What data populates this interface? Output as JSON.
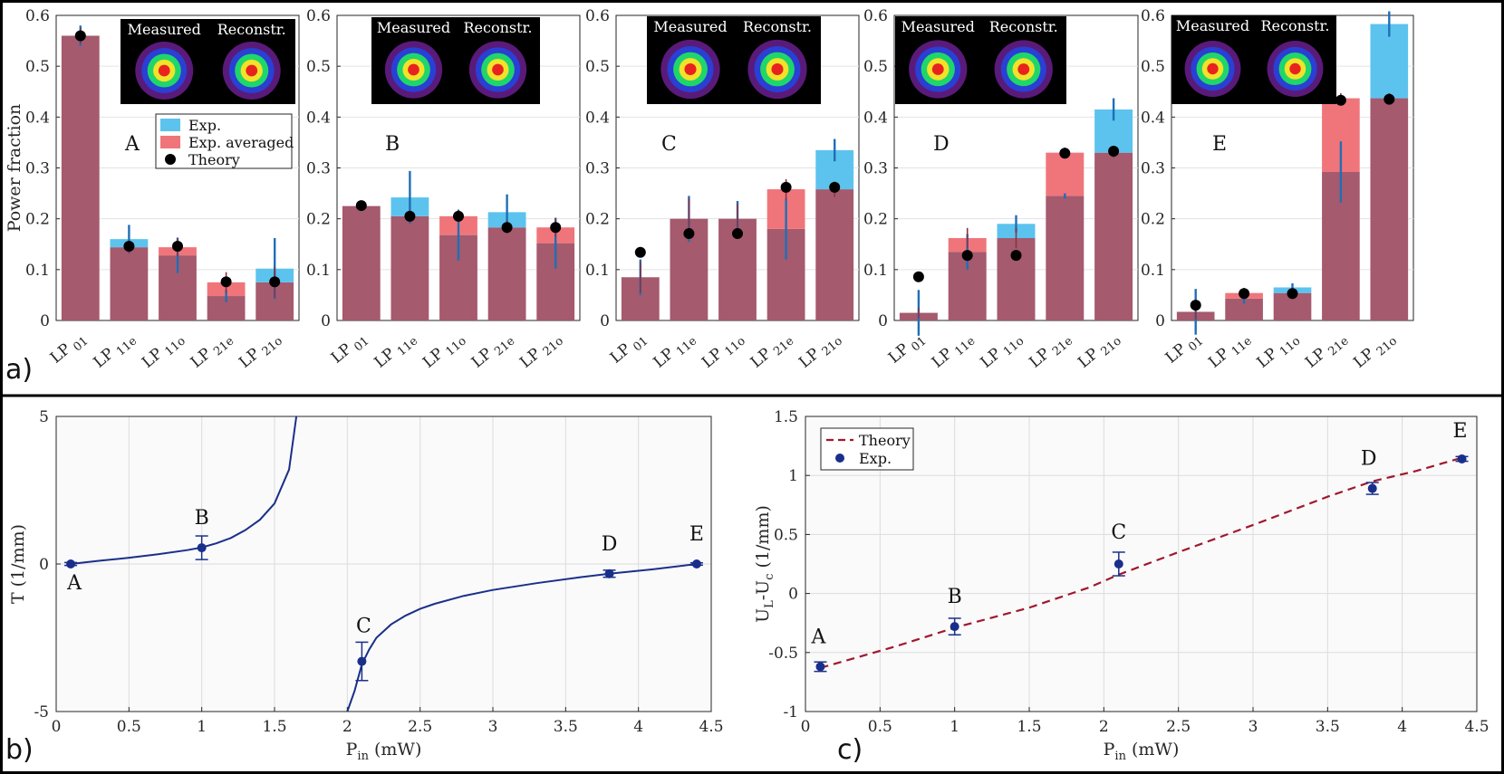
{
  "figure": {
    "panel_labels": [
      "a)",
      "b)",
      "c)"
    ]
  },
  "colors": {
    "exp": "#5cc3ee",
    "exp_avg": "#f0757a",
    "overlap": "#a55a6e",
    "err_exp": "#1f6fb5",
    "err_avg": "#8a3447",
    "theory_dot": "#000000",
    "curve": "#1a2f8a",
    "dashed": "#a0182e"
  },
  "chart_data": [
    {
      "type": "bar",
      "id": "A",
      "label": "A",
      "categories": [
        "LP01",
        "LP11e",
        "LP11o",
        "LP21e",
        "LP21o"
      ],
      "tick_labels": [
        {
          "main": "LP",
          "sub": "01"
        },
        {
          "main": "LP",
          "sub": "11e"
        },
        {
          "main": "LP",
          "sub": "11o"
        },
        {
          "main": "LP",
          "sub": "21e"
        },
        {
          "main": "LP",
          "sub": "21o"
        }
      ],
      "series": [
        {
          "name": "Exp.",
          "values": [
            0.56,
            0.16,
            0.128,
            0.048,
            0.102
          ],
          "err": [
            0.02,
            0.028,
            0.035,
            0.012,
            0.06
          ]
        },
        {
          "name": "Exp. averaged",
          "values": [
            0.56,
            0.144,
            0.144,
            0.075,
            0.075
          ],
          "err": [
            0.015,
            0.012,
            0.018,
            0.02,
            0.03
          ]
        },
        {
          "name": "Theory",
          "values": [
            0.56,
            0.146,
            0.146,
            0.076,
            0.076
          ]
        }
      ],
      "ylabel": "Power fraction",
      "ylim": [
        0,
        0.6
      ],
      "yticks": [
        0,
        0.1,
        0.2,
        0.3,
        0.4,
        0.5,
        0.6
      ],
      "inset": {
        "titles": [
          "Measured",
          "Reconstr."
        ]
      },
      "legend": {
        "entries": [
          "Exp.",
          "Exp. averaged",
          "Theory"
        ],
        "placement": "middle-right"
      }
    },
    {
      "type": "bar",
      "id": "B",
      "label": "B",
      "categories": [
        "LP01",
        "LP11e",
        "LP11o",
        "LP21e",
        "LP21o"
      ],
      "tick_labels": [
        {
          "main": "LP",
          "sub": "01"
        },
        {
          "main": "LP",
          "sub": "11e"
        },
        {
          "main": "LP",
          "sub": "11o"
        },
        {
          "main": "LP",
          "sub": "21e"
        },
        {
          "main": "LP",
          "sub": "21o"
        }
      ],
      "series": [
        {
          "name": "Exp.",
          "values": [
            0.225,
            0.242,
            0.168,
            0.213,
            0.152
          ],
          "err": [
            0.004,
            0.052,
            0.05,
            0.035,
            0.05
          ]
        },
        {
          "name": "Exp. averaged",
          "values": [
            0.225,
            0.205,
            0.205,
            0.183,
            0.183
          ],
          "err": [
            0.004,
            0.012,
            0.012,
            0.012,
            0.018
          ]
        },
        {
          "name": "Theory",
          "values": [
            0.226,
            0.205,
            0.205,
            0.183,
            0.183
          ]
        }
      ],
      "ylim": [
        0,
        0.6
      ],
      "yticks": [
        0,
        0.1,
        0.2,
        0.3,
        0.4,
        0.5,
        0.6
      ],
      "inset": {
        "titles": [
          "Measured",
          "Reconstr."
        ]
      }
    },
    {
      "type": "bar",
      "id": "C",
      "label": "C",
      "categories": [
        "LP01",
        "LP11e",
        "LP11o",
        "LP21e",
        "LP21o"
      ],
      "tick_labels": [
        {
          "main": "LP",
          "sub": "01"
        },
        {
          "main": "LP",
          "sub": "11e"
        },
        {
          "main": "LP",
          "sub": "11o"
        },
        {
          "main": "LP",
          "sub": "21e"
        },
        {
          "main": "LP",
          "sub": "21o"
        }
      ],
      "series": [
        {
          "name": "Exp.",
          "values": [
            0.085,
            0.2,
            0.2,
            0.18,
            0.335
          ],
          "err": [
            0.035,
            0.045,
            0.035,
            0.06,
            0.022
          ]
        },
        {
          "name": "Exp. averaged",
          "values": [
            0.085,
            0.2,
            0.2,
            0.258,
            0.258
          ],
          "err": [
            0.03,
            0.04,
            0.03,
            0.02,
            0.015
          ]
        },
        {
          "name": "Theory",
          "values": [
            0.134,
            0.171,
            0.171,
            0.262,
            0.262
          ]
        }
      ],
      "ylim": [
        0,
        0.6
      ],
      "yticks": [
        0,
        0.1,
        0.2,
        0.3,
        0.4,
        0.5,
        0.6
      ],
      "inset": {
        "titles": [
          "Measured",
          "Reconstr."
        ]
      }
    },
    {
      "type": "bar",
      "id": "D",
      "label": "D",
      "categories": [
        "LP01",
        "LP11e",
        "LP11o",
        "LP21e",
        "LP21o"
      ],
      "tick_labels": [
        {
          "main": "LP",
          "sub": "01"
        },
        {
          "main": "LP",
          "sub": "11e"
        },
        {
          "main": "LP",
          "sub": "11o"
        },
        {
          "main": "LP",
          "sub": "21e"
        },
        {
          "main": "LP",
          "sub": "21o"
        }
      ],
      "series": [
        {
          "name": "Exp.",
          "values": [
            0.015,
            0.135,
            0.19,
            0.245,
            0.415
          ],
          "err": [
            0.045,
            0.035,
            0.017,
            0.005,
            0.022
          ]
        },
        {
          "name": "Exp. averaged",
          "values": [
            0.015,
            0.162,
            0.162,
            0.33,
            0.33
          ],
          "err": [
            0.01,
            0.02,
            0.02,
            0.01,
            0.01
          ]
        },
        {
          "name": "Theory",
          "values": [
            0.086,
            0.128,
            0.128,
            0.329,
            0.333
          ]
        }
      ],
      "ylim": [
        0,
        0.6
      ],
      "yticks": [
        0,
        0.1,
        0.2,
        0.3,
        0.4,
        0.5,
        0.6
      ],
      "inset": {
        "titles": [
          "Measured",
          "Reconstr."
        ]
      }
    },
    {
      "type": "bar",
      "id": "E",
      "label": "E",
      "categories": [
        "LP01",
        "LP11e",
        "LP11o",
        "LP21e",
        "LP21o"
      ],
      "tick_labels": [
        {
          "main": "LP",
          "sub": "01"
        },
        {
          "main": "LP",
          "sub": "11e"
        },
        {
          "main": "LP",
          "sub": "11o"
        },
        {
          "main": "LP",
          "sub": "21e"
        },
        {
          "main": "LP",
          "sub": "21o"
        }
      ],
      "series": [
        {
          "name": "Exp.",
          "values": [
            0.017,
            0.043,
            0.065,
            0.292,
            0.583
          ],
          "err": [
            0.045,
            0.01,
            0.008,
            0.06,
            0.025
          ]
        },
        {
          "name": "Exp. averaged",
          "values": [
            0.017,
            0.054,
            0.054,
            0.437,
            0.437
          ],
          "err": [
            0.015,
            0.01,
            0.005,
            0.01,
            0.01
          ]
        },
        {
          "name": "Theory",
          "values": [
            0.03,
            0.053,
            0.053,
            0.433,
            0.435
          ]
        }
      ],
      "ylim": [
        0,
        0.6
      ],
      "yticks": [
        0,
        0.1,
        0.2,
        0.3,
        0.4,
        0.5,
        0.6
      ],
      "inset": {
        "titles": [
          "Measured",
          "Reconstr."
        ]
      }
    },
    {
      "type": "line",
      "id": "b",
      "xlabel": {
        "main": "P",
        "sub": "in",
        "rest": " (mW)"
      },
      "ylabel": "T (1/mm)",
      "xlim": [
        0,
        4.5
      ],
      "ylim": [
        -5,
        5
      ],
      "xticks": [
        "0",
        "0.5",
        "1",
        "1.5",
        "2",
        "2.5",
        "3",
        "3.5",
        "4",
        "4.5"
      ],
      "yticks": [
        "-5",
        "0",
        "5"
      ],
      "theory_branch1": {
        "x": [
          0.1,
          0.3,
          0.5,
          0.7,
          0.9,
          1.0,
          1.1,
          1.2,
          1.3,
          1.4,
          1.5,
          1.6,
          1.65
        ],
        "y": [
          0.0,
          0.11,
          0.21,
          0.33,
          0.47,
          0.56,
          0.7,
          0.88,
          1.15,
          1.5,
          2.05,
          3.2,
          5.0
        ]
      },
      "theory_branch2": {
        "x": [
          2.0,
          2.05,
          2.1,
          2.15,
          2.2,
          2.3,
          2.4,
          2.5,
          2.6,
          2.8,
          3.0,
          3.3,
          3.6,
          3.8,
          4.1,
          4.4
        ],
        "y": [
          -5.0,
          -4.3,
          -3.4,
          -2.9,
          -2.5,
          -2.05,
          -1.75,
          -1.52,
          -1.35,
          -1.08,
          -0.88,
          -0.65,
          -0.45,
          -0.33,
          -0.18,
          0.0
        ]
      },
      "points": [
        {
          "label": "A",
          "x": 0.1,
          "y": 0.0,
          "err": 0.05
        },
        {
          "label": "B",
          "x": 1.0,
          "y": 0.55,
          "err": 0.4
        },
        {
          "label": "C",
          "x": 2.1,
          "y": -3.3,
          "err": 0.65
        },
        {
          "label": "D",
          "x": 3.8,
          "y": -0.33,
          "err": 0.12
        },
        {
          "label": "E",
          "x": 4.4,
          "y": 0.0,
          "err": 0.04
        }
      ]
    },
    {
      "type": "line",
      "id": "c",
      "xlabel": {
        "main": "P",
        "sub": "in",
        "rest": " (mW)"
      },
      "ylabel": {
        "main1": "U",
        "sub1": "L",
        "mid": "-U",
        "sub2": "c",
        "rest": " (1/mm)"
      },
      "xlim": [
        0,
        4.5
      ],
      "ylim": [
        -1,
        1.5
      ],
      "xticks": [
        "0",
        "0.5",
        "1",
        "1.5",
        "2",
        "2.5",
        "3",
        "3.5",
        "4",
        "4.5"
      ],
      "yticks": [
        "-1",
        "-0.5",
        "0",
        "0.5",
        "1",
        "1.5"
      ],
      "theory": {
        "x": [
          0.1,
          0.6,
          1.0,
          1.5,
          1.9,
          2.1,
          2.5,
          3.0,
          3.5,
          3.8,
          4.1,
          4.4
        ],
        "y": [
          -0.63,
          -0.45,
          -0.29,
          -0.12,
          0.05,
          0.16,
          0.35,
          0.58,
          0.82,
          0.95,
          1.04,
          1.15
        ]
      },
      "points": [
        {
          "label": "A",
          "x": 0.1,
          "y": -0.62,
          "err": 0.04
        },
        {
          "label": "B",
          "x": 1.0,
          "y": -0.28,
          "err": 0.07
        },
        {
          "label": "C",
          "x": 2.1,
          "y": 0.25,
          "err": 0.1
        },
        {
          "label": "D",
          "x": 3.8,
          "y": 0.89,
          "err": 0.05
        },
        {
          "label": "E",
          "x": 4.4,
          "y": 1.14,
          "err": 0.02
        }
      ],
      "legend": {
        "entries": [
          "Theory",
          "Exp."
        ],
        "placement": "top-left"
      }
    }
  ]
}
